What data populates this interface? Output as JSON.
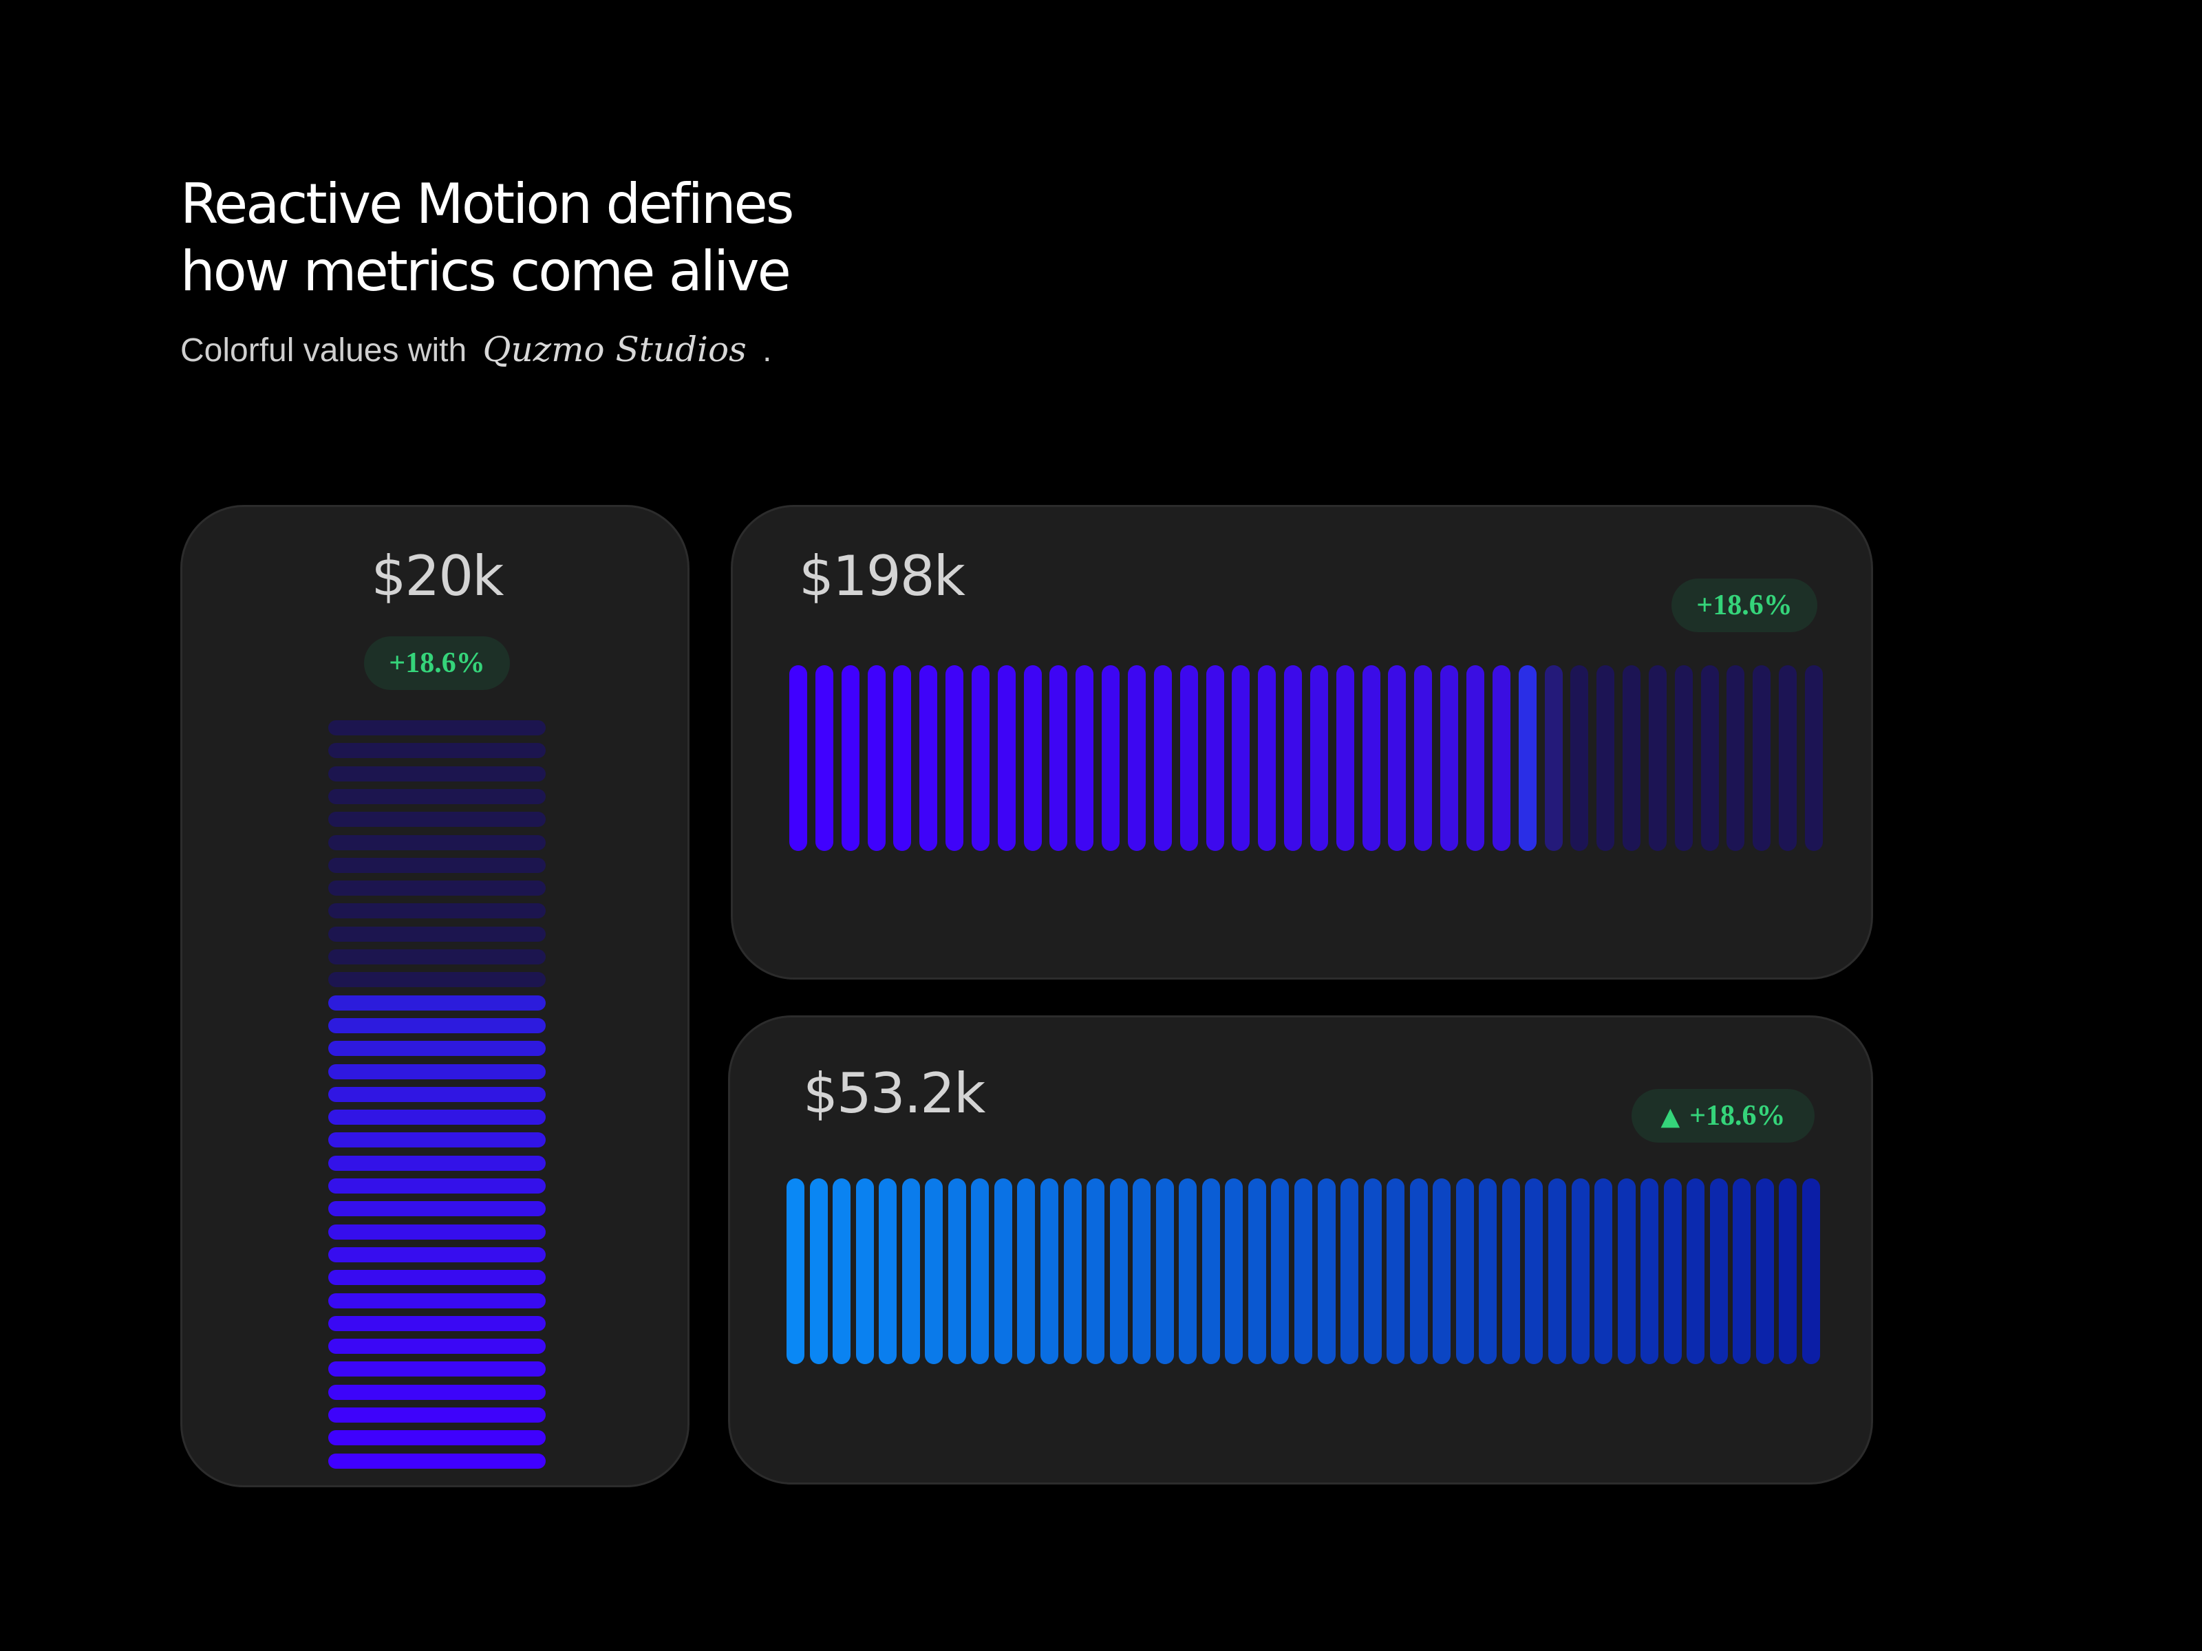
{
  "headline": {
    "line1": "Reactive Motion defines",
    "line2": "how metrics come alive"
  },
  "subline": {
    "prefix": "Colorful values with",
    "brand": "Quzmo Studios",
    "suffix": "."
  },
  "colors": {
    "background": "#000000",
    "card": "#1e1e1e",
    "badge_bg": "#1d3027",
    "badge_text": "#35d47a",
    "bar_active_violet": "#4000ff",
    "bar_inactive_violet": "#1c1454",
    "bar_blue_start": "#0a88f5",
    "bar_blue_end": "#0b1ea6"
  },
  "cards": {
    "vertical": {
      "value": "$20k",
      "change": "+18.6%",
      "bars_total": 33,
      "bars_active": 21
    },
    "top": {
      "value": "$198k",
      "change": "+18.6%",
      "bars_total": 40,
      "bars_active": 29
    },
    "bottom": {
      "value": "$53.2k",
      "change_arrow": "▲",
      "change": "+18.6%",
      "bars_total": 45,
      "bars_active": 45
    }
  }
}
